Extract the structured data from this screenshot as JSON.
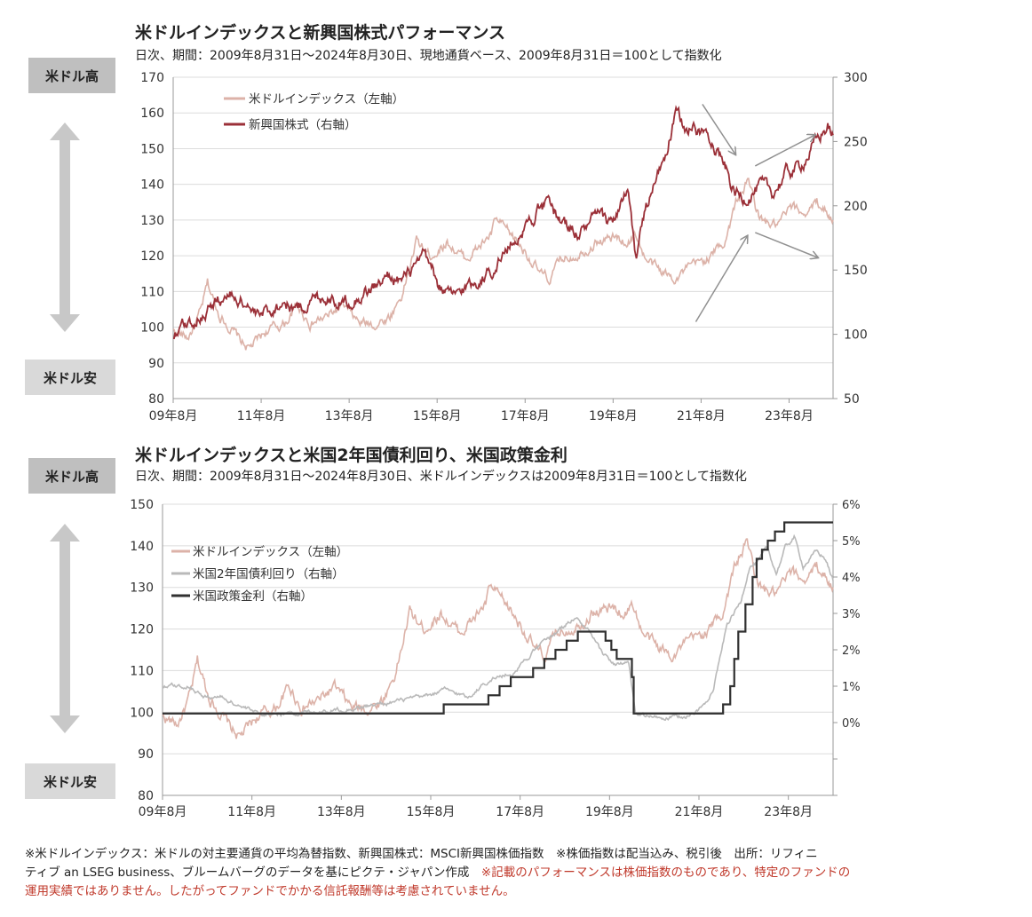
{
  "tags": {
    "usd_strong": "米ドル高",
    "usd_weak": "米ドル安"
  },
  "chart1": {
    "title": "米ドルインデックスと新興国株式パフォーマンス",
    "subtitle": "日次、期間：2009年8月31日～2024年8月30日、現地通貨ベース、2009年8月31日＝100として指数化"
  },
  "chart2": {
    "title": "米ドルインデックスと米国2年国債利回り、米国政策金利",
    "subtitle": "日次、期間：2009年8月31日～2024年8月30日、米ドルインデックスは2009年8月31日＝100として指数化"
  },
  "footnote": {
    "line1": "※米ドルインデックス：米ドルの対主要通貨の平均為替指数、新興国株式：MSCI新興国株価指数　※株価指数は配当込み、税引後　出所：リフィニ",
    "line2": "ティブ an LSEG business、ブルームバーグのデータを基にピクテ・ジャパン作成",
    "line2_warn": "※記載のパフォーマンスは株価指数のものであり、特定のファンドの",
    "line3_warn": "運用実績ではありません。したがってファンドでかかる信託報酬等は考慮されていません。"
  },
  "colors": {
    "dxy": "#dcb2a8",
    "em": "#9b3038",
    "us2y": "#b9b9b9",
    "ffr": "#303030",
    "arrow": "#909090",
    "grid": "#dcdcdc"
  },
  "chart_data": [
    {
      "type": "line",
      "title": "米ドルインデックスと新興国株式パフォーマンス",
      "x_ticks": [
        "09年8月",
        "11年8月",
        "13年8月",
        "15年8月",
        "17年8月",
        "19年8月",
        "21年8月",
        "23年8月"
      ],
      "x_range": [
        2009.67,
        2024.67
      ],
      "y_left": {
        "ylim": [
          80,
          170
        ],
        "ticks": [
          80,
          90,
          100,
          110,
          120,
          130,
          140,
          150,
          160,
          170
        ]
      },
      "y_right": {
        "ylim": [
          50,
          300
        ],
        "ticks": [
          50,
          100,
          150,
          200,
          250,
          300
        ]
      },
      "series": [
        {
          "name": "米ドルインデックス（左軸）",
          "axis": "left",
          "x": [
            2009.67,
            2010.0,
            2010.3,
            2010.45,
            2010.7,
            2010.9,
            2011.2,
            2011.4,
            2011.8,
            2012.2,
            2012.5,
            2012.8,
            2013.2,
            2013.5,
            2013.9,
            2014.3,
            2014.6,
            2014.9,
            2015.2,
            2015.5,
            2015.9,
            2016.3,
            2016.6,
            2016.9,
            2017.0,
            2017.4,
            2017.7,
            2018.0,
            2018.2,
            2018.5,
            2018.9,
            2019.3,
            2019.7,
            2020.0,
            2020.2,
            2020.4,
            2020.7,
            2021.0,
            2021.2,
            2021.5,
            2021.9,
            2022.2,
            2022.5,
            2022.75,
            2023.0,
            2023.4,
            2023.7,
            2024.0,
            2024.3,
            2024.5,
            2024.67
          ],
          "y": [
            99,
            97,
            104,
            112,
            104,
            101,
            96,
            94,
            99,
            101,
            106,
            101,
            103,
            106,
            101,
            101,
            103,
            110,
            124,
            120,
            124,
            119,
            122,
            126,
            130,
            125,
            121,
            115,
            113,
            119,
            121,
            124,
            125,
            124,
            126,
            119,
            116,
            114,
            115,
            117,
            120,
            124,
            136,
            141,
            130,
            128,
            133,
            132,
            135,
            133,
            130
          ]
        },
        {
          "name": "新興国株式（右軸）",
          "axis": "right",
          "x": [
            2009.67,
            2010.0,
            2010.3,
            2010.5,
            2010.8,
            2011.0,
            2011.3,
            2011.6,
            2011.8,
            2012.2,
            2012.5,
            2012.9,
            2013.2,
            2013.5,
            2013.9,
            2014.3,
            2014.6,
            2014.9,
            2015.2,
            2015.4,
            2015.7,
            2016.0,
            2016.3,
            2016.6,
            2016.9,
            2017.3,
            2017.7,
            2018.0,
            2018.2,
            2018.5,
            2018.9,
            2019.3,
            2019.6,
            2019.8,
            2020.0,
            2020.2,
            2020.3,
            2020.6,
            2020.9,
            2021.1,
            2021.3,
            2021.6,
            2021.9,
            2022.2,
            2022.4,
            2022.6,
            2022.8,
            2023.0,
            2023.3,
            2023.6,
            2023.9,
            2024.1,
            2024.4,
            2024.55,
            2024.67
          ],
          "y": [
            100,
            108,
            115,
            122,
            128,
            130,
            126,
            112,
            118,
            125,
            120,
            128,
            130,
            125,
            130,
            138,
            145,
            142,
            152,
            160,
            138,
            128,
            136,
            142,
            150,
            168,
            185,
            198,
            200,
            188,
            178,
            192,
            185,
            198,
            210,
            155,
            185,
            215,
            245,
            270,
            262,
            258,
            255,
            232,
            212,
            205,
            210,
            215,
            210,
            225,
            230,
            240,
            255,
            262,
            255
          ]
        }
      ],
      "annotations": [
        "arrow: 米ドルインデックス up (2021.6 → 2022.8)",
        "arrow: 米ドルインデックス down-right (2022.9 → 2024.3)",
        "arrow: 新興国株式 down (2021.7 → 2022.5)",
        "arrow: 新興国株式 up (2022.9 → 2024.2)"
      ]
    },
    {
      "type": "line",
      "title": "米ドルインデックスと米国2年国債利回り、米国政策金利",
      "x_ticks": [
        "09年8月",
        "11年8月",
        "13年8月",
        "15年8月",
        "17年8月",
        "19年8月",
        "21年8月",
        "23年8月"
      ],
      "x_range": [
        2009.67,
        2024.67
      ],
      "y_left": {
        "ylim": [
          80,
          150
        ],
        "ticks": [
          80,
          90,
          100,
          110,
          120,
          130,
          140,
          150
        ]
      },
      "y_right": {
        "ylim": [
          -2,
          6
        ],
        "ticks": [
          "0%",
          "1%",
          "2%",
          "3%",
          "4%",
          "5%",
          "6%"
        ]
      },
      "series": [
        {
          "name": "米ドルインデックス（左軸）",
          "axis": "left",
          "x": [
            2009.67,
            2010.0,
            2010.3,
            2010.45,
            2010.7,
            2010.9,
            2011.2,
            2011.4,
            2011.8,
            2012.2,
            2012.5,
            2012.8,
            2013.2,
            2013.5,
            2013.9,
            2014.3,
            2014.6,
            2014.9,
            2015.2,
            2015.5,
            2015.9,
            2016.3,
            2016.6,
            2016.9,
            2017.0,
            2017.4,
            2017.7,
            2018.0,
            2018.2,
            2018.5,
            2018.9,
            2019.3,
            2019.7,
            2020.0,
            2020.2,
            2020.4,
            2020.7,
            2021.0,
            2021.2,
            2021.5,
            2021.9,
            2022.2,
            2022.5,
            2022.75,
            2023.0,
            2023.4,
            2023.7,
            2024.0,
            2024.3,
            2024.5,
            2024.67
          ],
          "y": [
            99,
            97,
            104,
            112,
            104,
            101,
            96,
            94,
            99,
            101,
            106,
            101,
            103,
            106,
            101,
            101,
            103,
            110,
            124,
            120,
            124,
            119,
            122,
            126,
            130,
            125,
            121,
            115,
            113,
            119,
            121,
            124,
            125,
            124,
            126,
            119,
            116,
            114,
            115,
            117,
            120,
            124,
            136,
            141,
            130,
            128,
            133,
            132,
            135,
            133,
            130
          ]
        },
        {
          "name": "米国2年国債利回り（右軸）",
          "axis": "right",
          "x": [
            2009.67,
            2010.0,
            2010.3,
            2010.6,
            2011.0,
            2011.5,
            2011.8,
            2012.5,
            2013.5,
            2014.0,
            2014.5,
            2015.0,
            2015.5,
            2016.0,
            2016.5,
            2017.0,
            2017.5,
            2018.0,
            2018.5,
            2018.9,
            2019.2,
            2019.5,
            2019.8,
            2020.1,
            2020.25,
            2020.6,
            2021.0,
            2021.5,
            2021.8,
            2022.0,
            2022.3,
            2022.6,
            2022.8,
            2023.0,
            2023.2,
            2023.4,
            2023.6,
            2023.8,
            2024.0,
            2024.3,
            2024.5,
            2024.67
          ],
          "y": [
            1.0,
            1.0,
            1.0,
            0.7,
            0.7,
            0.4,
            0.25,
            0.25,
            0.35,
            0.4,
            0.5,
            0.6,
            0.7,
            0.9,
            0.7,
            1.2,
            1.35,
            2.0,
            2.5,
            2.9,
            2.5,
            1.9,
            1.6,
            1.6,
            0.25,
            0.15,
            0.12,
            0.2,
            0.5,
            1.0,
            2.7,
            3.3,
            4.3,
            4.4,
            4.8,
            4.1,
            4.8,
            5.1,
            4.3,
            4.7,
            4.5,
            3.9
          ]
        },
        {
          "name": "米国政策金利（右軸）",
          "axis": "right",
          "x": [
            2009.67,
            2015.96,
            2016.96,
            2017.21,
            2017.46,
            2017.96,
            2018.21,
            2018.46,
            2018.71,
            2018.96,
            2019.58,
            2019.71,
            2019.83,
            2020.17,
            2020.21,
            2022.21,
            2022.37,
            2022.46,
            2022.55,
            2022.71,
            2022.87,
            2022.96,
            2023.08,
            2023.21,
            2023.37,
            2023.58,
            2024.67
          ],
          "y": [
            0.25,
            0.5,
            0.75,
            1.0,
            1.25,
            1.5,
            1.75,
            2.0,
            2.25,
            2.5,
            2.25,
            2.0,
            1.75,
            1.25,
            0.25,
            0.5,
            1.0,
            1.75,
            2.5,
            3.25,
            4.0,
            4.5,
            4.75,
            5.0,
            5.25,
            5.5,
            5.5
          ]
        }
      ]
    }
  ]
}
